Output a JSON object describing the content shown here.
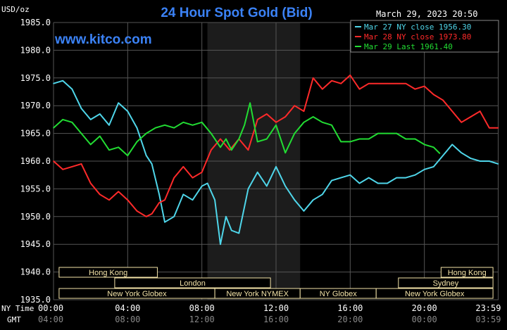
{
  "chart_data": {
    "type": "line",
    "title": "24 Hour Spot Gold (Bid)",
    "ylabel": "USD/oz",
    "timestamp": "March 29, 2023 20:50",
    "site": "www.kitco.com",
    "ylim": [
      1935,
      1985
    ],
    "y_ticks": [
      "1935.0",
      "1940.0",
      "1945.0",
      "1950.0",
      "1955.0",
      "1960.0",
      "1965.0",
      "1970.0",
      "1975.0",
      "1980.0",
      "1985.0"
    ],
    "x_ticks": [
      "00:00",
      "04:00",
      "08:00",
      "12:00",
      "16:00",
      "20:00",
      "23:59"
    ],
    "x_ticks_gmt": [
      "04:00",
      "08:00",
      "12:00",
      "16:00",
      "20:00",
      "00:00",
      "03:59"
    ],
    "x_axis_label_ny": "NY Time",
    "x_axis_label_gmt": "GMT",
    "grid": true,
    "legend_position": "top-right",
    "colors": {
      "background": "#000000",
      "plot": "#000000",
      "grid": "#555555",
      "highlight": "#1c1c1c",
      "title": "#3b82f6",
      "site": "#3b82f6",
      "text": "#ffffff",
      "session_bg": "#f3e3a8",
      "session_text": "#000000"
    },
    "highlight_range": [
      8.3,
      13.3
    ],
    "series": [
      {
        "name": "Mar 27 NY close 1956.30",
        "color": "#4fd6ea",
        "x": [
          0,
          0.5,
          1,
          1.5,
          2,
          2.5,
          3,
          3.5,
          4,
          4.5,
          5,
          5.3,
          5.7,
          6,
          6.5,
          7,
          7.5,
          8,
          8.3,
          8.7,
          9,
          9.3,
          9.6,
          10,
          10.5,
          11,
          11.5,
          12,
          12.5,
          13,
          13.5,
          14,
          14.5,
          15,
          15.5,
          16,
          16.5,
          17,
          17.5,
          18,
          18.5,
          19,
          19.5,
          20,
          20.5,
          21,
          21.5,
          22,
          22.5,
          23,
          23.5,
          23.98
        ],
        "y": [
          1974,
          1974.5,
          1973,
          1969.5,
          1967.5,
          1968.5,
          1966.5,
          1970.5,
          1969,
          1966,
          1961,
          1959.5,
          1954,
          1949,
          1950,
          1954,
          1953,
          1955.5,
          1956,
          1953,
          1945,
          1950,
          1947.5,
          1947,
          1955,
          1958,
          1955.5,
          1959,
          1955.5,
          1953,
          1951,
          1953,
          1954,
          1956.5,
          1957,
          1957.5,
          1956,
          1957,
          1956,
          1956,
          1957,
          1957,
          1957.5,
          1958.5,
          1959,
          1961,
          1963,
          1961.5,
          1960.5,
          1960,
          1960,
          1959.5
        ]
      },
      {
        "name": "Mar 28 NY close 1973.80",
        "color": "#ff2a2a",
        "x": [
          0,
          0.5,
          1,
          1.5,
          2,
          2.5,
          3,
          3.5,
          4,
          4.5,
          5,
          5.3,
          5.7,
          6,
          6.5,
          7,
          7.5,
          8,
          8.5,
          9,
          9.5,
          10,
          10.5,
          11,
          11.5,
          12,
          12.5,
          13,
          13.5,
          14,
          14.5,
          15,
          15.5,
          16,
          16.5,
          17,
          17.5,
          18,
          18.5,
          19,
          19.5,
          20,
          20.5,
          21,
          21.5,
          22,
          22.5,
          23,
          23.5,
          23.98
        ],
        "y": [
          1960,
          1958.5,
          1959,
          1959.5,
          1956,
          1954,
          1953,
          1954.5,
          1953,
          1951,
          1950,
          1950.5,
          1952.5,
          1953,
          1957,
          1959,
          1957,
          1958,
          1962,
          1964,
          1962,
          1964,
          1962,
          1967.5,
          1968.5,
          1967,
          1968,
          1970,
          1969,
          1975,
          1973,
          1974.5,
          1974,
          1975.5,
          1973,
          1974,
          1974,
          1974,
          1974,
          1974,
          1973,
          1973.5,
          1972,
          1971,
          1969,
          1967,
          1968,
          1969,
          1966,
          1966
        ]
      },
      {
        "name": "Mar 29 Last 1961.40",
        "color": "#22dd33",
        "x": [
          0,
          0.5,
          1,
          1.5,
          2,
          2.5,
          3,
          3.5,
          4,
          4.5,
          5,
          5.5,
          6,
          6.5,
          7,
          7.5,
          8,
          8.5,
          9,
          9.3,
          9.6,
          10,
          10.3,
          10.6,
          11,
          11.5,
          12,
          12.5,
          13,
          13.5,
          14,
          14.5,
          15,
          15.5,
          16,
          16.5,
          17,
          17.5,
          18,
          18.5,
          19,
          19.5,
          20,
          20.5,
          20.83
        ],
        "y": [
          1966,
          1967.5,
          1967,
          1965,
          1963,
          1964.5,
          1962,
          1962.5,
          1961,
          1963.5,
          1965,
          1966,
          1966.5,
          1966,
          1967,
          1966.5,
          1967,
          1965,
          1962.5,
          1964,
          1962,
          1964,
          1966.5,
          1970.5,
          1963.5,
          1964,
          1966.5,
          1961.5,
          1965,
          1967,
          1968,
          1967,
          1966.5,
          1963.5,
          1963.5,
          1964,
          1964,
          1965,
          1965,
          1965,
          1964,
          1964,
          1963,
          1962.5,
          1961.4
        ]
      }
    ]
  },
  "sessions": [
    {
      "label": "Hong Kong",
      "row": 1,
      "start": 0.3,
      "end": 5.6
    },
    {
      "label": "London",
      "row": 2,
      "start": 3.3,
      "end": 11.7
    },
    {
      "label": "New York Globex",
      "row": 3,
      "start": 0.3,
      "end": 8.7
    },
    {
      "label": "New York NYMEX",
      "row": 3,
      "start": 8.7,
      "end": 13.3
    },
    {
      "label": "NY Globex",
      "row": 3,
      "start": 13.3,
      "end": 17.4
    },
    {
      "label": "Sydney",
      "row": 2,
      "start": 18.6,
      "end": 23.7
    },
    {
      "label": "New York Globex",
      "row": 3,
      "start": 17.4,
      "end": 23.7
    },
    {
      "label": "Hong Kong",
      "row": 1,
      "start": 20.9,
      "end": 23.7
    }
  ]
}
